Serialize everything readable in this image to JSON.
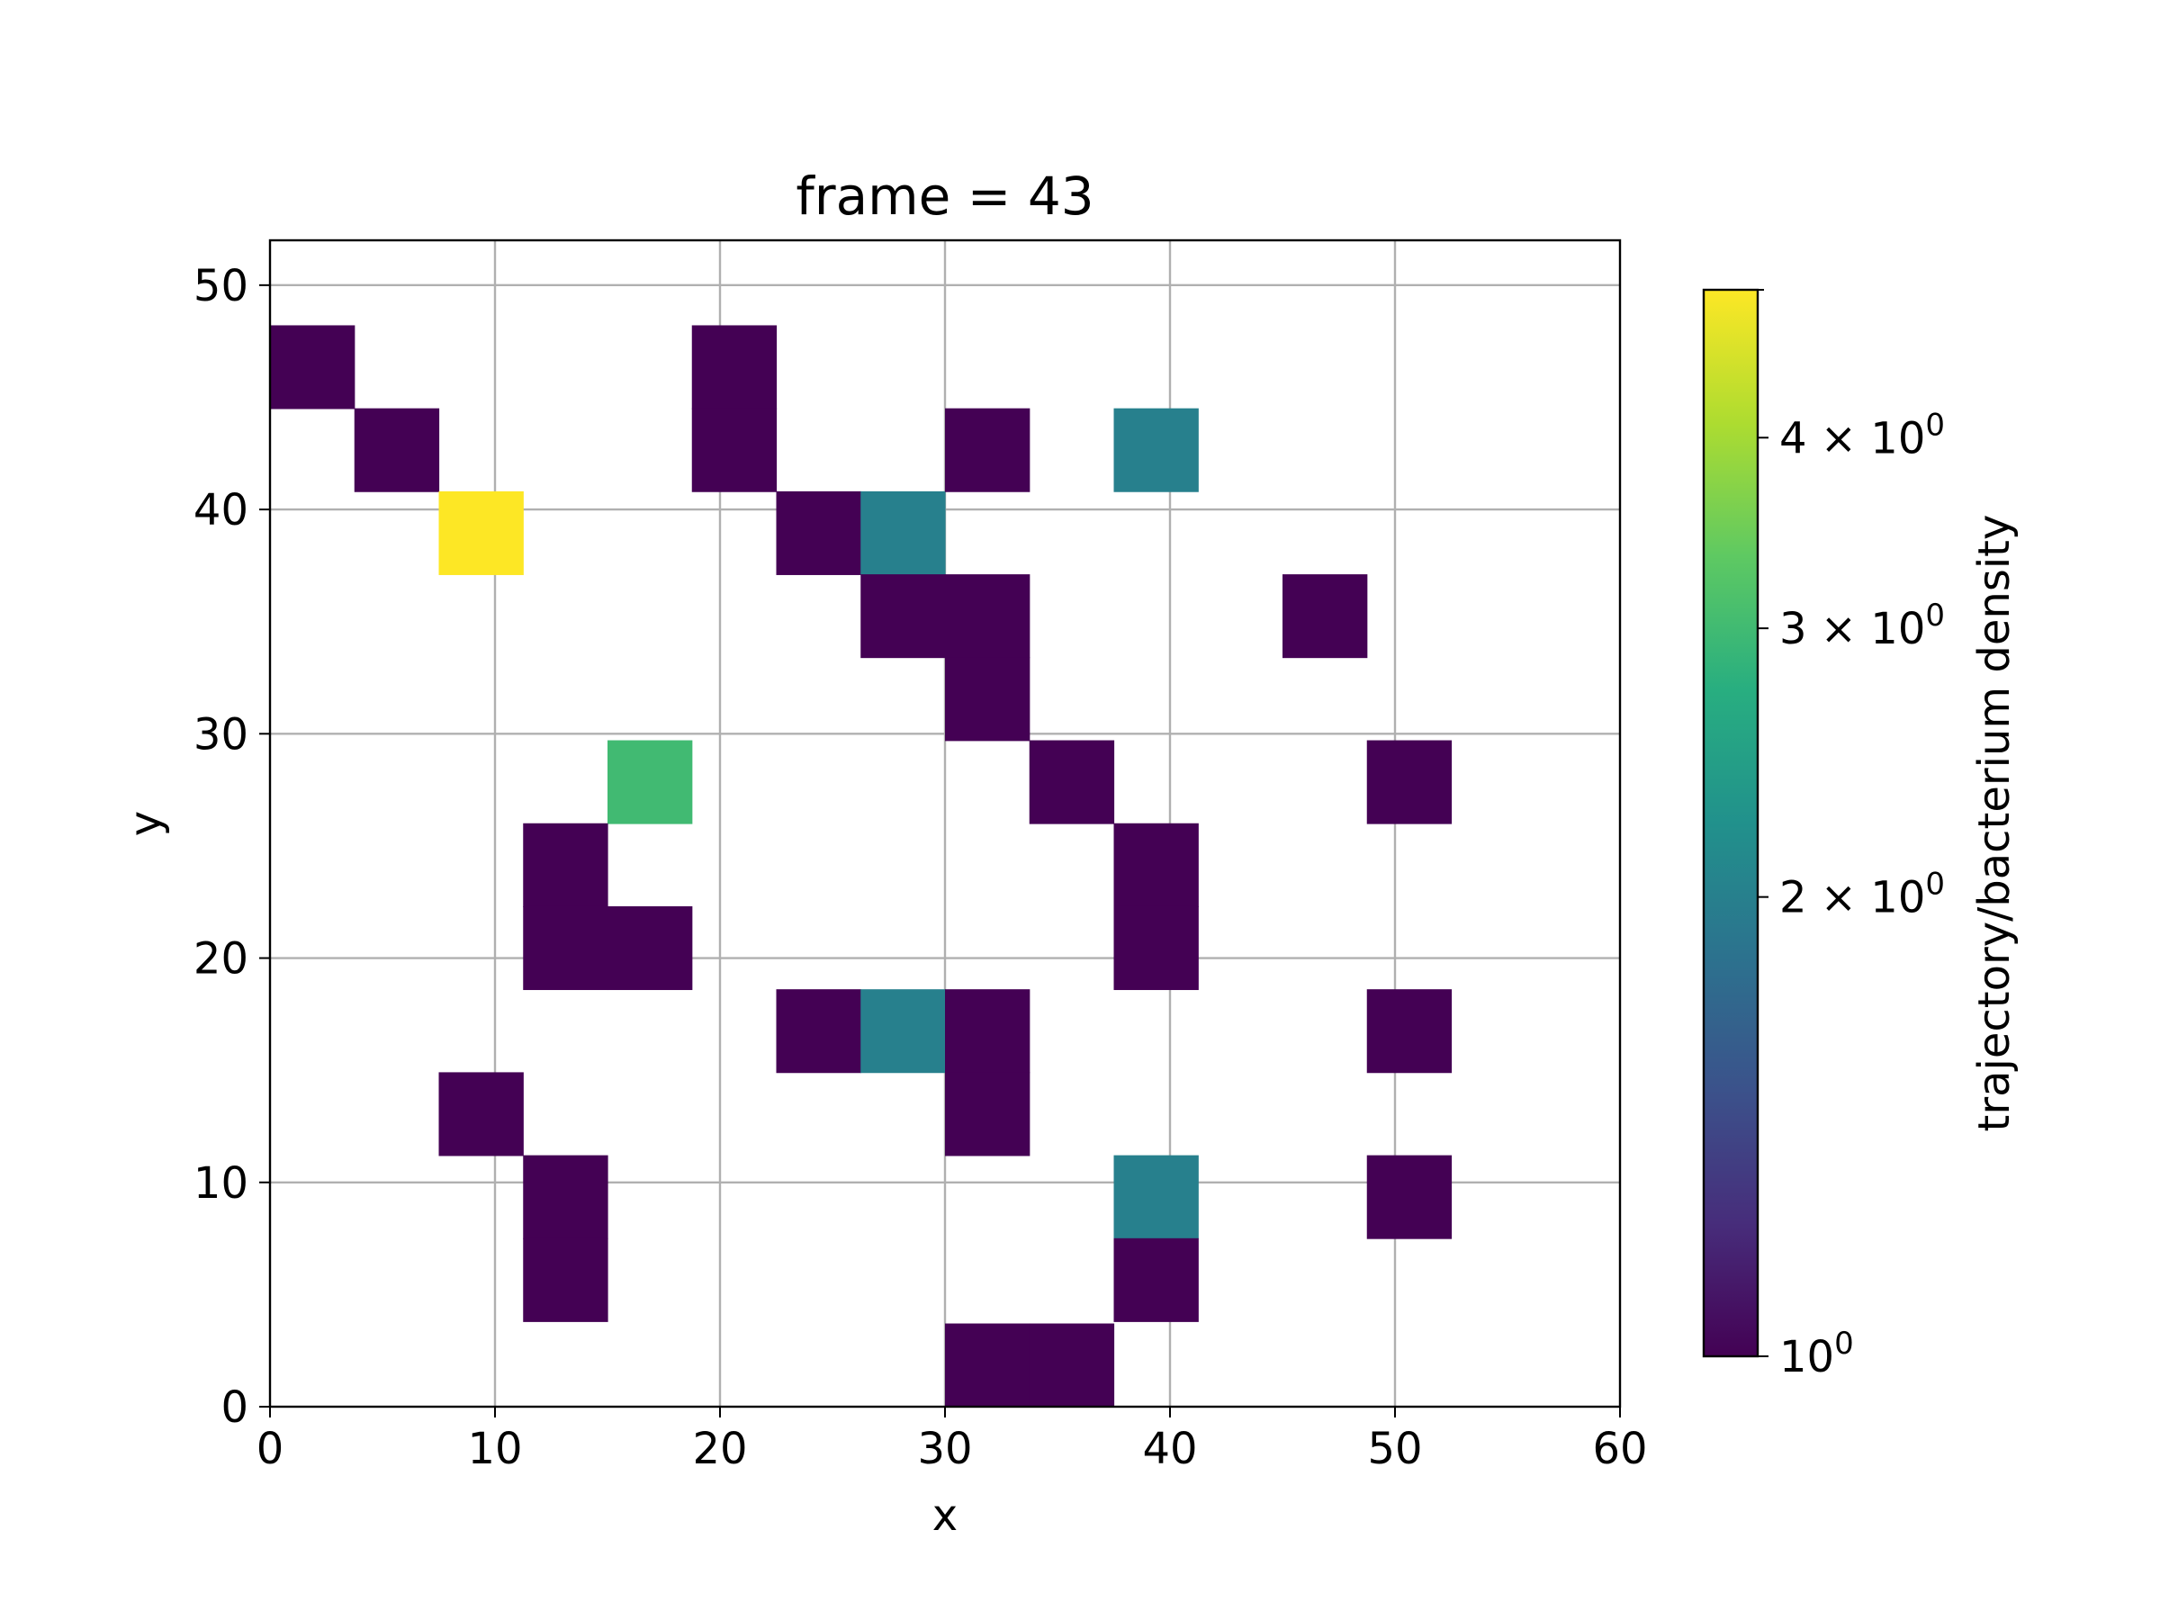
{
  "chart_data": {
    "type": "heatmap",
    "title": "frame = 43",
    "xlabel": "x",
    "ylabel": "y",
    "xlim": [
      0,
      60
    ],
    "ylim": [
      0,
      52
    ],
    "x_ticks": [
      0,
      10,
      20,
      30,
      40,
      50,
      60
    ],
    "y_ticks": [
      0,
      10,
      20,
      30,
      40,
      50
    ],
    "grid": true,
    "bin_width": 3.75,
    "bin_height": 3.71,
    "colormap": "viridis",
    "color_scale": "log",
    "colorbar": {
      "label": "trajectory/bacterium density",
      "range": [
        1,
        5
      ],
      "ticks": [
        {
          "value": 1,
          "base": "10",
          "exp": "0",
          "prefix": ""
        },
        {
          "value": 2,
          "base": "10",
          "exp": "0",
          "prefix": "2 × "
        },
        {
          "value": 3,
          "base": "10",
          "exp": "0",
          "prefix": "3 × "
        },
        {
          "value": 4,
          "base": "10",
          "exp": "0",
          "prefix": "4 × "
        }
      ]
    },
    "cells": [
      {
        "x": 0,
        "y": 44.5,
        "value": 1
      },
      {
        "x": 3.75,
        "y": 40.8,
        "value": 1
      },
      {
        "x": 7.5,
        "y": 37.1,
        "value": 5
      },
      {
        "x": 18.75,
        "y": 44.5,
        "value": 1
      },
      {
        "x": 18.75,
        "y": 40.8,
        "value": 1
      },
      {
        "x": 22.5,
        "y": 37.1,
        "value": 1
      },
      {
        "x": 26.25,
        "y": 37.1,
        "value": 2
      },
      {
        "x": 26.25,
        "y": 33.4,
        "value": 1
      },
      {
        "x": 30,
        "y": 40.8,
        "value": 1
      },
      {
        "x": 30,
        "y": 33.4,
        "value": 1
      },
      {
        "x": 30,
        "y": 29.7,
        "value": 1
      },
      {
        "x": 37.5,
        "y": 40.8,
        "value": 2
      },
      {
        "x": 45,
        "y": 33.4,
        "value": 1
      },
      {
        "x": 15,
        "y": 26.0,
        "value": 3
      },
      {
        "x": 33.75,
        "y": 26.0,
        "value": 1
      },
      {
        "x": 48.75,
        "y": 26.0,
        "value": 1
      },
      {
        "x": 11.25,
        "y": 22.3,
        "value": 1
      },
      {
        "x": 11.25,
        "y": 18.6,
        "value": 1
      },
      {
        "x": 15,
        "y": 18.6,
        "value": 1
      },
      {
        "x": 37.5,
        "y": 22.3,
        "value": 1
      },
      {
        "x": 37.5,
        "y": 18.6,
        "value": 1
      },
      {
        "x": 22.5,
        "y": 14.9,
        "value": 1
      },
      {
        "x": 26.25,
        "y": 14.9,
        "value": 2
      },
      {
        "x": 30,
        "y": 14.9,
        "value": 1
      },
      {
        "x": 30,
        "y": 11.2,
        "value": 1
      },
      {
        "x": 48.75,
        "y": 14.9,
        "value": 1
      },
      {
        "x": 7.5,
        "y": 11.2,
        "value": 1
      },
      {
        "x": 11.25,
        "y": 7.5,
        "value": 1
      },
      {
        "x": 11.25,
        "y": 3.8,
        "value": 1
      },
      {
        "x": 37.5,
        "y": 7.5,
        "value": 2
      },
      {
        "x": 37.5,
        "y": 3.8,
        "value": 1
      },
      {
        "x": 48.75,
        "y": 7.5,
        "value": 1
      },
      {
        "x": 30,
        "y": 0,
        "value": 1
      },
      {
        "x": 33.75,
        "y": 0,
        "value": 1
      }
    ]
  }
}
